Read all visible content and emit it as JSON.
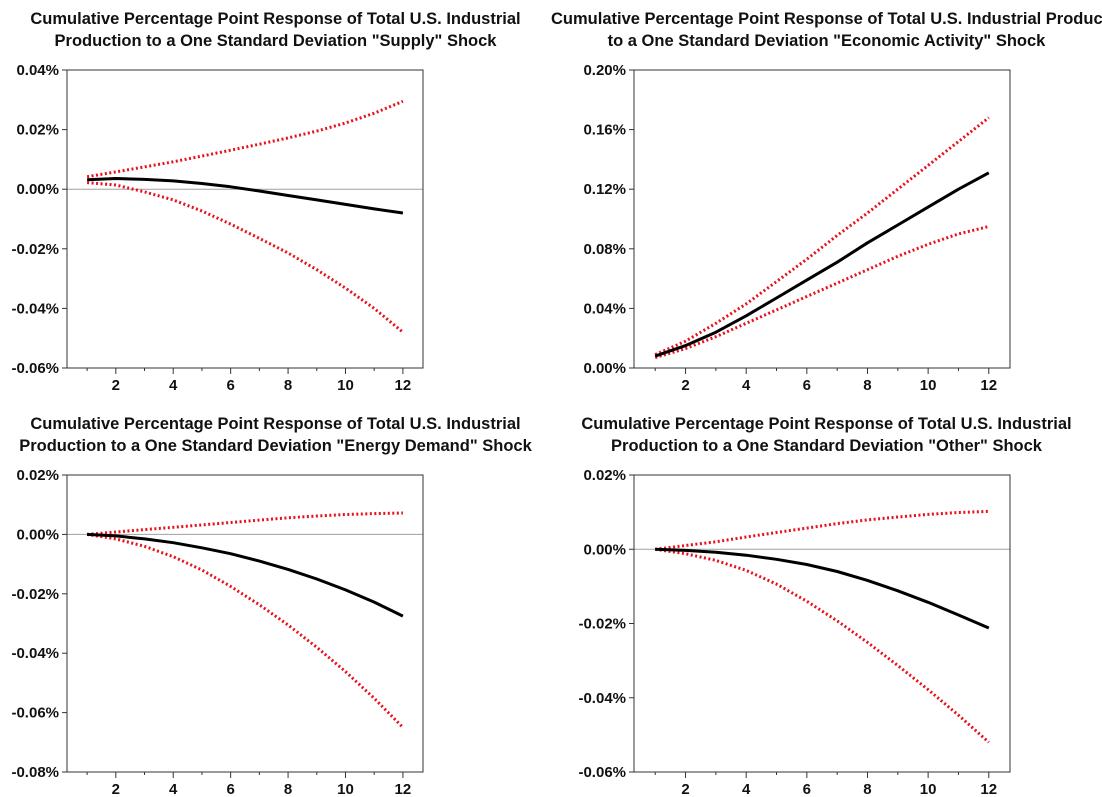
{
  "colors": {
    "line": "#000000",
    "band": "#e8101a",
    "frame": "#333333",
    "zero": "#a0a0a0"
  },
  "chart_data": [
    {
      "type": "line",
      "title": [
        "Cumulative Percentage Point Response of Total U.S. Industrial",
        "Production to a One Standard Deviation \"Supply\" Shock"
      ],
      "xlabel": "",
      "ylabel": "",
      "xlim": [
        0.3,
        12.7
      ],
      "ylim": [
        -0.06,
        0.04
      ],
      "yticks": [
        -0.06,
        -0.04,
        -0.02,
        0.0,
        0.02,
        0.04
      ],
      "ytick_labels": [
        "-0.06%",
        "-0.04%",
        "-0.02%",
        "0.00%",
        "0.02%",
        "0.04%"
      ],
      "xticks": [
        2,
        4,
        6,
        8,
        10,
        12
      ],
      "xtick_labels": [
        "2",
        "4",
        "6",
        "8",
        "10",
        "12"
      ],
      "x": [
        1,
        2,
        3,
        4,
        5,
        6,
        7,
        8,
        9,
        10,
        11,
        12
      ],
      "zero_line": true,
      "series": [
        {
          "role": "estimate",
          "values": [
            0.0032,
            0.0036,
            0.0033,
            0.0028,
            0.0019,
            0.0008,
            -0.0006,
            -0.0021,
            -0.0036,
            -0.0051,
            -0.0066,
            -0.008
          ]
        },
        {
          "role": "upper",
          "values": [
            0.0042,
            0.0058,
            0.0075,
            0.0092,
            0.0111,
            0.0131,
            0.0151,
            0.0172,
            0.0195,
            0.0222,
            0.0255,
            0.0295
          ]
        },
        {
          "role": "lower",
          "values": [
            0.0022,
            0.0014,
            -0.0009,
            -0.0036,
            -0.0073,
            -0.0117,
            -0.0165,
            -0.0214,
            -0.027,
            -0.0332,
            -0.04,
            -0.048
          ]
        }
      ]
    },
    {
      "type": "line",
      "title": [
        "Cumulative Percentage Point Response of Total U.S. Industrial Production",
        "to a One Standard Deviation \"Economic Activity\" Shock"
      ],
      "xlabel": "",
      "ylabel": "",
      "xlim": [
        0.3,
        12.7
      ],
      "ylim": [
        0.0,
        0.2
      ],
      "yticks": [
        0.0,
        0.04,
        0.08,
        0.12,
        0.16,
        0.2
      ],
      "ytick_labels": [
        "0.00%",
        "0.04%",
        "0.08%",
        "0.12%",
        "0.16%",
        "0.20%"
      ],
      "xticks": [
        2,
        4,
        6,
        8,
        10,
        12
      ],
      "xtick_labels": [
        "2",
        "4",
        "6",
        "8",
        "10",
        "12"
      ],
      "x": [
        1,
        2,
        3,
        4,
        5,
        6,
        7,
        8,
        9,
        10,
        11,
        12
      ],
      "zero_line": false,
      "series": [
        {
          "role": "estimate",
          "values": [
            0.008,
            0.015,
            0.024,
            0.035,
            0.047,
            0.059,
            0.071,
            0.084,
            0.096,
            0.108,
            0.12,
            0.131
          ]
        },
        {
          "role": "upper",
          "values": [
            0.009,
            0.018,
            0.03,
            0.043,
            0.058,
            0.073,
            0.089,
            0.104,
            0.12,
            0.136,
            0.152,
            0.168
          ]
        },
        {
          "role": "lower",
          "values": [
            0.007,
            0.013,
            0.021,
            0.03,
            0.039,
            0.048,
            0.057,
            0.066,
            0.075,
            0.083,
            0.09,
            0.095
          ]
        }
      ]
    },
    {
      "type": "line",
      "title": [
        "Cumulative Percentage Point Response of Total U.S. Industrial",
        "Production to a One Standard Deviation \"Energy Demand\" Shock"
      ],
      "xlabel": "",
      "ylabel": "",
      "xlim": [
        0.3,
        12.7
      ],
      "ylim": [
        -0.08,
        0.02
      ],
      "yticks": [
        -0.08,
        -0.06,
        -0.04,
        -0.02,
        0.0,
        0.02
      ],
      "ytick_labels": [
        "-0.08%",
        "-0.06%",
        "-0.04%",
        "-0.02%",
        "0.00%",
        "0.02%"
      ],
      "xticks": [
        2,
        4,
        6,
        8,
        10,
        12
      ],
      "xtick_labels": [
        "2",
        "4",
        "6",
        "8",
        "10",
        "12"
      ],
      "x": [
        1,
        2,
        3,
        4,
        5,
        6,
        7,
        8,
        9,
        10,
        11,
        12
      ],
      "zero_line": true,
      "series": [
        {
          "role": "estimate",
          "values": [
            0.0,
            -0.0005,
            -0.0015,
            -0.0028,
            -0.0045,
            -0.0065,
            -0.009,
            -0.0118,
            -0.015,
            -0.0187,
            -0.0228,
            -0.0275
          ]
        },
        {
          "role": "upper",
          "values": [
            0.0,
            0.0008,
            0.0016,
            0.0024,
            0.0032,
            0.004,
            0.0048,
            0.0056,
            0.0062,
            0.0067,
            0.007,
            0.0072
          ]
        },
        {
          "role": "lower",
          "values": [
            0.0,
            -0.0015,
            -0.004,
            -0.0075,
            -0.012,
            -0.0175,
            -0.0237,
            -0.0305,
            -0.038,
            -0.0462,
            -0.0552,
            -0.065
          ]
        }
      ]
    },
    {
      "type": "line",
      "title": [
        "Cumulative Percentage Point Response of Total U.S. Industrial",
        "Production to a One Standard Deviation \"Other\" Shock"
      ],
      "xlabel": "",
      "ylabel": "",
      "xlim": [
        0.3,
        12.7
      ],
      "ylim": [
        -0.06,
        0.02
      ],
      "yticks": [
        -0.06,
        -0.04,
        -0.02,
        0.0,
        0.02
      ],
      "ytick_labels": [
        "-0.06%",
        "-0.04%",
        "-0.02%",
        "0.00%",
        "0.02%"
      ],
      "xticks": [
        2,
        4,
        6,
        8,
        10,
        12
      ],
      "xtick_labels": [
        "2",
        "4",
        "6",
        "8",
        "10",
        "12"
      ],
      "x": [
        1,
        2,
        3,
        4,
        5,
        6,
        7,
        8,
        9,
        10,
        11,
        12
      ],
      "zero_line": true,
      "series": [
        {
          "role": "estimate",
          "values": [
            0.0,
            -0.0003,
            -0.0008,
            -0.0016,
            -0.0027,
            -0.0041,
            -0.006,
            -0.0084,
            -0.0112,
            -0.0143,
            -0.0177,
            -0.0212
          ]
        },
        {
          "role": "upper",
          "values": [
            0.0,
            0.001,
            0.002,
            0.0033,
            0.0045,
            0.0057,
            0.0069,
            0.0079,
            0.0087,
            0.0094,
            0.0099,
            0.0102
          ]
        },
        {
          "role": "lower",
          "values": [
            0.0,
            -0.0012,
            -0.003,
            -0.0057,
            -0.0094,
            -0.014,
            -0.0193,
            -0.0251,
            -0.0313,
            -0.0378,
            -0.0447,
            -0.052
          ]
        }
      ]
    }
  ]
}
